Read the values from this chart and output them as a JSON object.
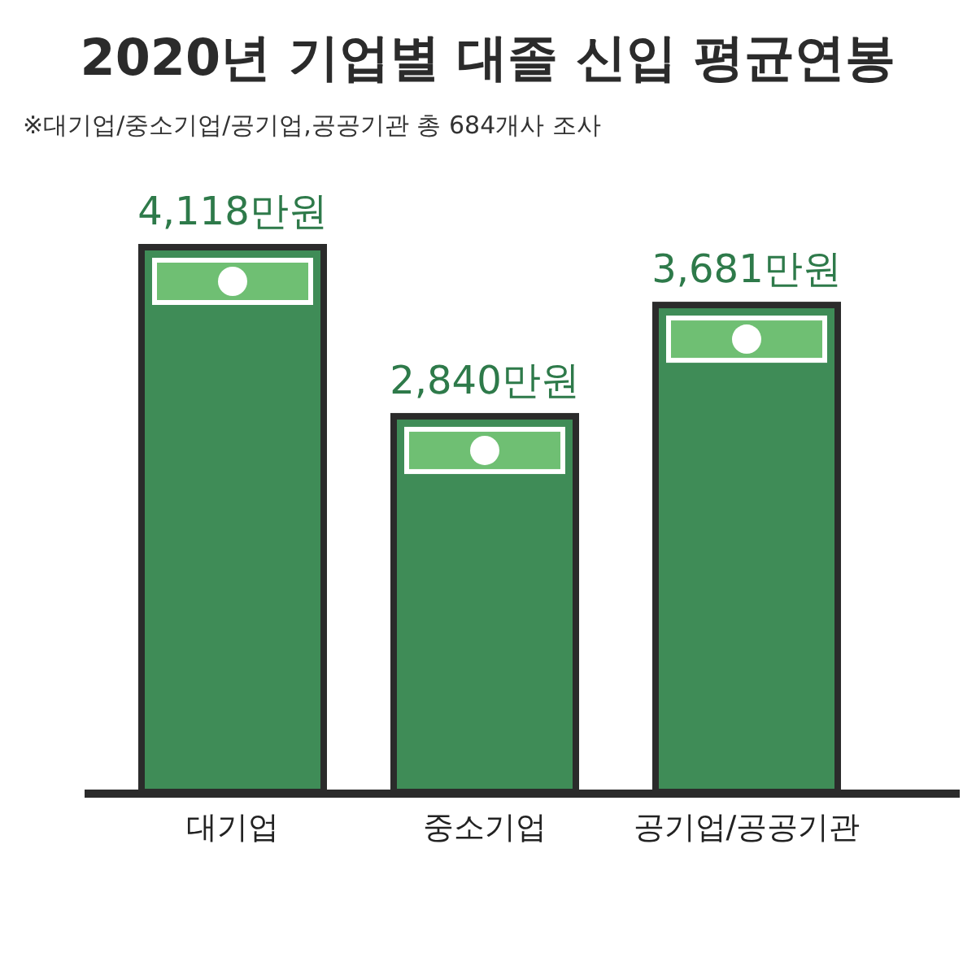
{
  "chart_data": {
    "type": "bar",
    "title": "2020년 기업별 대졸 신입 평균연봉",
    "subtitle": "※대기업/중소기업/공기업,공공기관 총 684개사 조사",
    "categories": [
      "대기업",
      "중소기업",
      "공기업/공공기관"
    ],
    "values": [
      4118,
      2840,
      3681
    ],
    "value_labels": [
      "4,118만원",
      "2,840만원",
      "3,681만원"
    ],
    "color": "#3f8c57"
  }
}
